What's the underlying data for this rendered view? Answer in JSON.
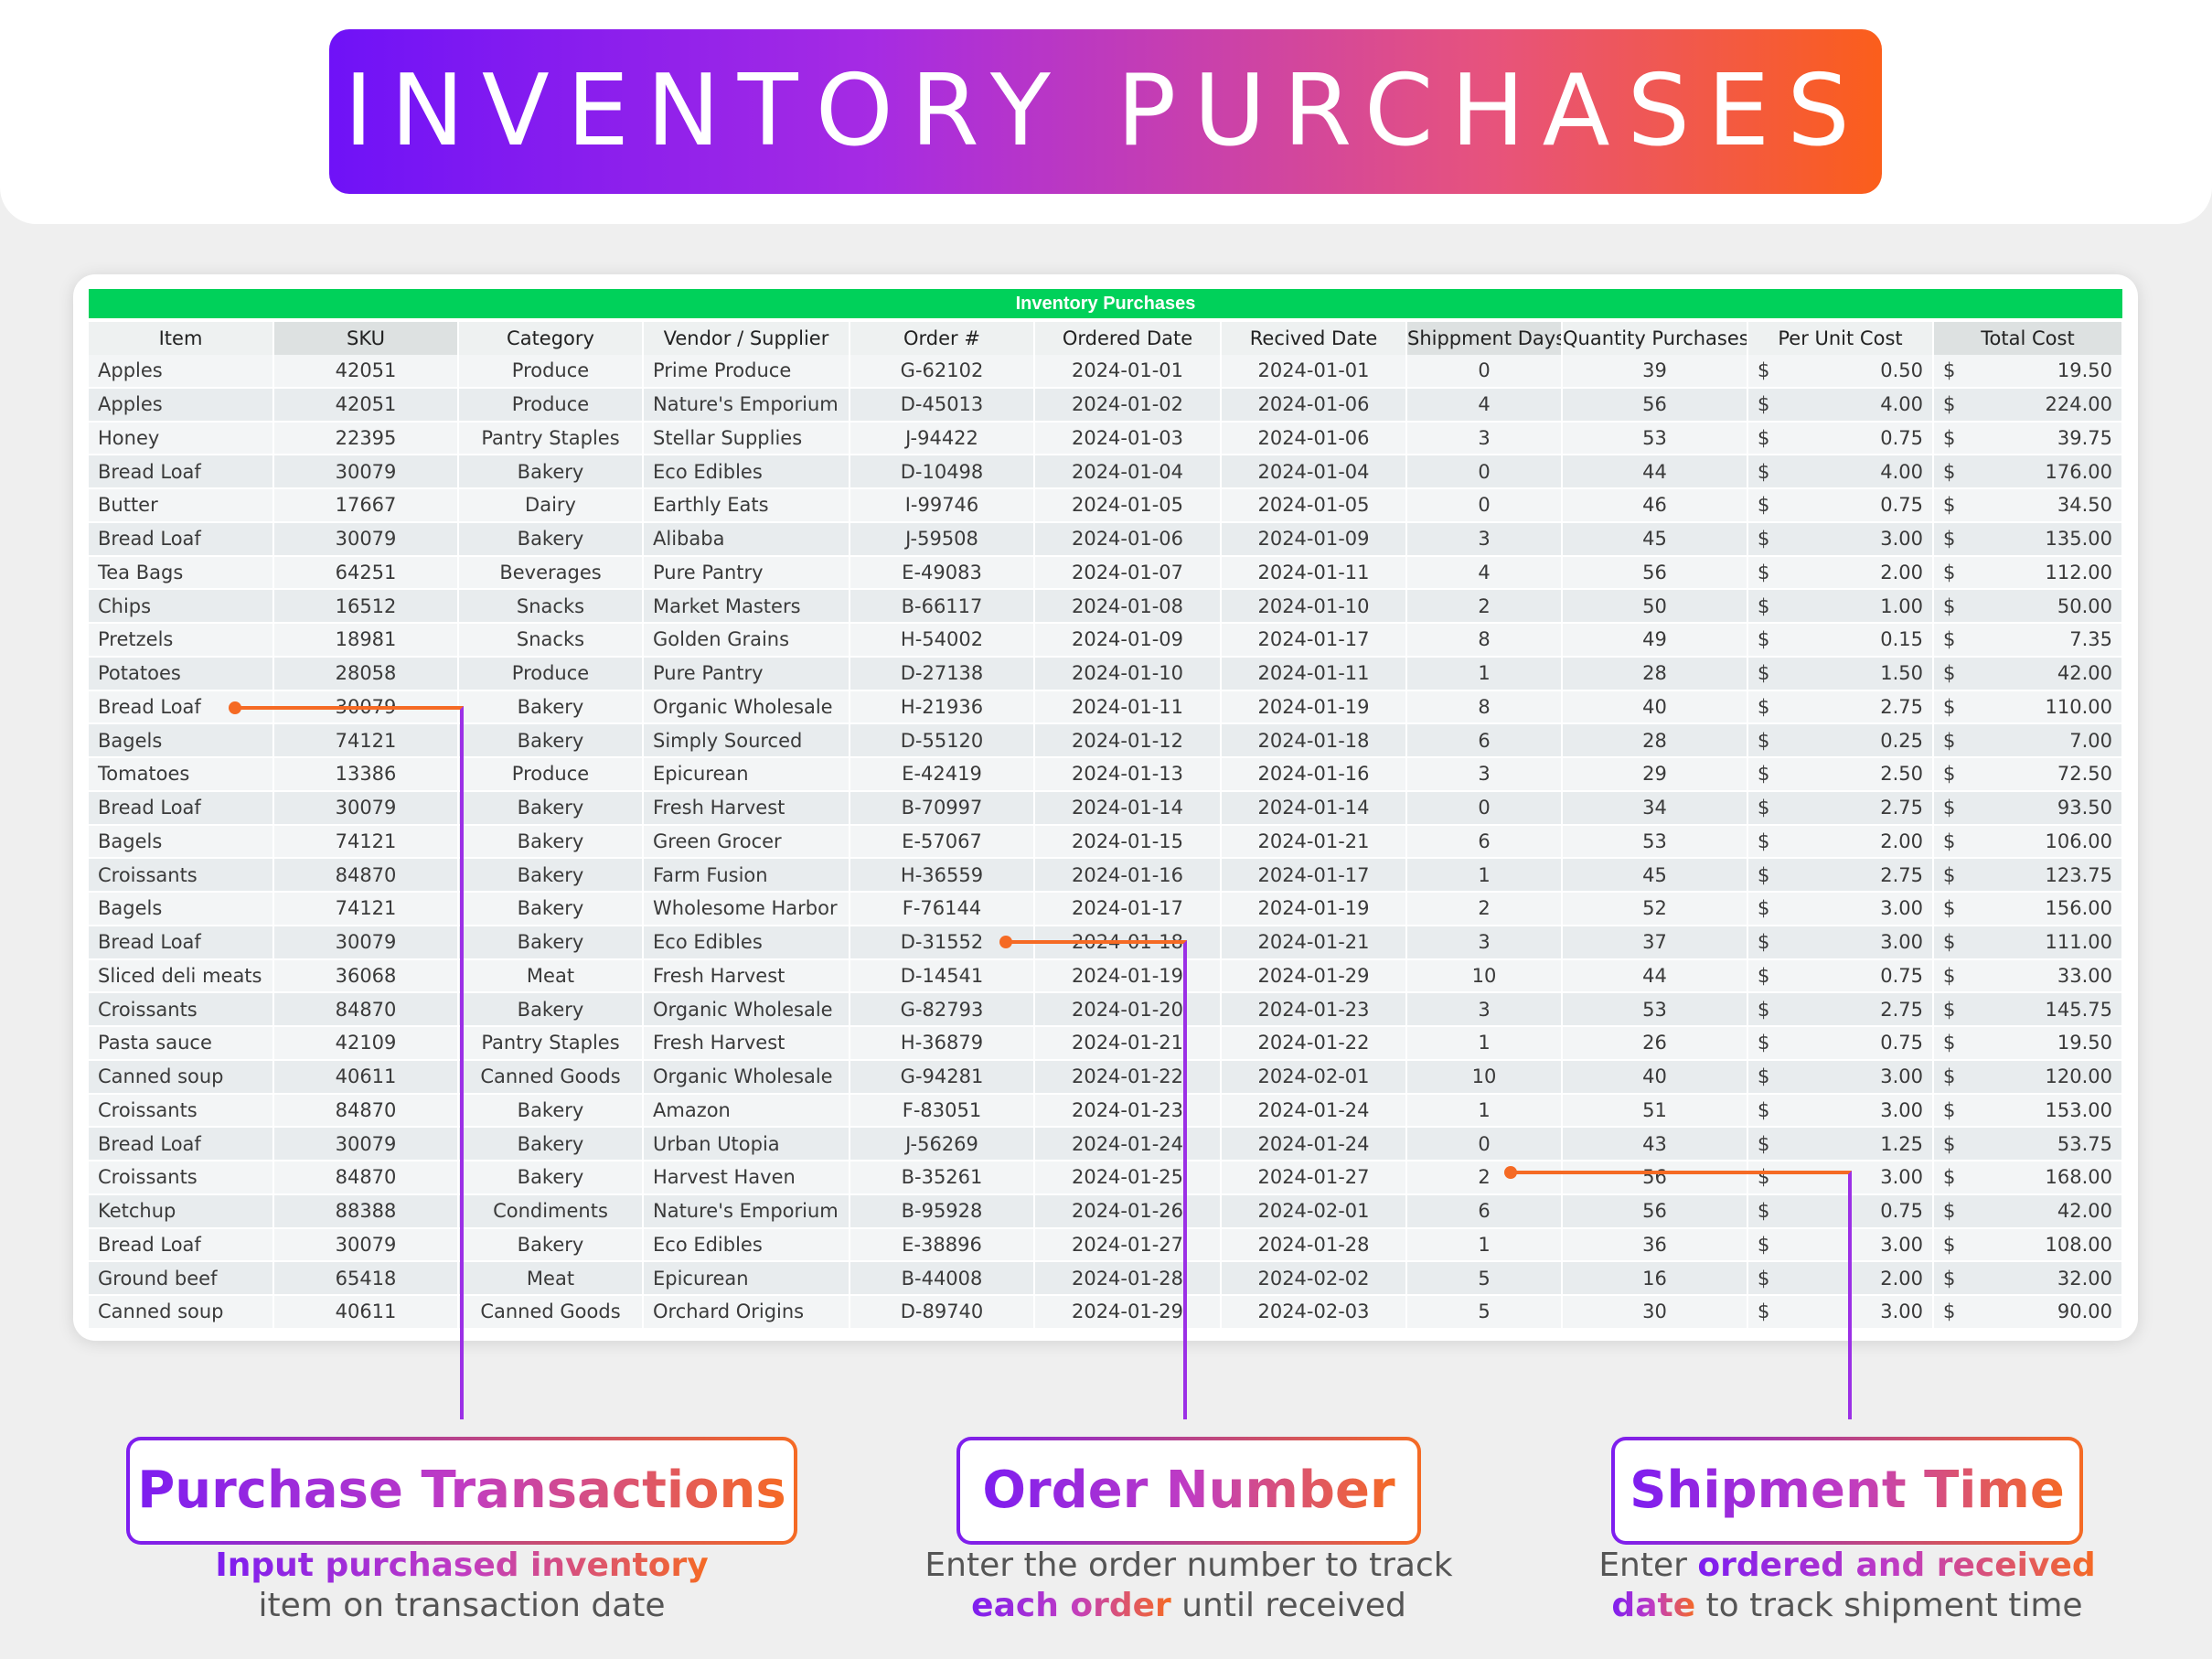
{
  "banner_title": "INVENTORY PURCHASES",
  "sheet_title": "Inventory Purchases",
  "columns": [
    "Item",
    "SKU",
    "Category",
    "Vendor / Supplier",
    "Order #",
    "Ordered Date",
    "Recived Date",
    "Shippment Days",
    "Quantity Purchases",
    "Per Unit Cost",
    "Total Cost"
  ],
  "currency_symbol": "$",
  "rows": [
    [
      "Apples",
      "42051",
      "Produce",
      "Prime Produce",
      "G-62102",
      "2024-01-01",
      "2024-01-01",
      "0",
      "39",
      "0.50",
      "19.50"
    ],
    [
      "Apples",
      "42051",
      "Produce",
      "Nature's Emporium",
      "D-45013",
      "2024-01-02",
      "2024-01-06",
      "4",
      "56",
      "4.00",
      "224.00"
    ],
    [
      "Honey",
      "22395",
      "Pantry Staples",
      "Stellar Supplies",
      "J-94422",
      "2024-01-03",
      "2024-01-06",
      "3",
      "53",
      "0.75",
      "39.75"
    ],
    [
      "Bread Loaf",
      "30079",
      "Bakery",
      "Eco Edibles",
      "D-10498",
      "2024-01-04",
      "2024-01-04",
      "0",
      "44",
      "4.00",
      "176.00"
    ],
    [
      "Butter",
      "17667",
      "Dairy",
      "Earthly Eats",
      "I-99746",
      "2024-01-05",
      "2024-01-05",
      "0",
      "46",
      "0.75",
      "34.50"
    ],
    [
      "Bread Loaf",
      "30079",
      "Bakery",
      "Alibaba",
      "J-59508",
      "2024-01-06",
      "2024-01-09",
      "3",
      "45",
      "3.00",
      "135.00"
    ],
    [
      "Tea Bags",
      "64251",
      "Beverages",
      "Pure Pantry",
      "E-49083",
      "2024-01-07",
      "2024-01-11",
      "4",
      "56",
      "2.00",
      "112.00"
    ],
    [
      "Chips",
      "16512",
      "Snacks",
      "Market Masters",
      "B-66117",
      "2024-01-08",
      "2024-01-10",
      "2",
      "50",
      "1.00",
      "50.00"
    ],
    [
      "Pretzels",
      "18981",
      "Snacks",
      "Golden Grains",
      "H-54002",
      "2024-01-09",
      "2024-01-17",
      "8",
      "49",
      "0.15",
      "7.35"
    ],
    [
      "Potatoes",
      "28058",
      "Produce",
      "Pure Pantry",
      "D-27138",
      "2024-01-10",
      "2024-01-11",
      "1",
      "28",
      "1.50",
      "42.00"
    ],
    [
      "Bread Loaf",
      "30079",
      "Bakery",
      "Organic Wholesale",
      "H-21936",
      "2024-01-11",
      "2024-01-19",
      "8",
      "40",
      "2.75",
      "110.00"
    ],
    [
      "Bagels",
      "74121",
      "Bakery",
      "Simply Sourced",
      "D-55120",
      "2024-01-12",
      "2024-01-18",
      "6",
      "28",
      "0.25",
      "7.00"
    ],
    [
      "Tomatoes",
      "13386",
      "Produce",
      "Epicurean",
      "E-42419",
      "2024-01-13",
      "2024-01-16",
      "3",
      "29",
      "2.50",
      "72.50"
    ],
    [
      "Bread Loaf",
      "30079",
      "Bakery",
      "Fresh Harvest",
      "B-70997",
      "2024-01-14",
      "2024-01-14",
      "0",
      "34",
      "2.75",
      "93.50"
    ],
    [
      "Bagels",
      "74121",
      "Bakery",
      "Green Grocer",
      "E-57067",
      "2024-01-15",
      "2024-01-21",
      "6",
      "53",
      "2.00",
      "106.00"
    ],
    [
      "Croissants",
      "84870",
      "Bakery",
      "Farm Fusion",
      "H-36559",
      "2024-01-16",
      "2024-01-17",
      "1",
      "45",
      "2.75",
      "123.75"
    ],
    [
      "Bagels",
      "74121",
      "Bakery",
      "Wholesome Harbor",
      "F-76144",
      "2024-01-17",
      "2024-01-19",
      "2",
      "52",
      "3.00",
      "156.00"
    ],
    [
      "Bread Loaf",
      "30079",
      "Bakery",
      "Eco Edibles",
      "D-31552",
      "2024-01-18",
      "2024-01-21",
      "3",
      "37",
      "3.00",
      "111.00"
    ],
    [
      "Sliced deli meats",
      "36068",
      "Meat",
      "Fresh Harvest",
      "D-14541",
      "2024-01-19",
      "2024-01-29",
      "10",
      "44",
      "0.75",
      "33.00"
    ],
    [
      "Croissants",
      "84870",
      "Bakery",
      "Organic Wholesale",
      "G-82793",
      "2024-01-20",
      "2024-01-23",
      "3",
      "53",
      "2.75",
      "145.75"
    ],
    [
      "Pasta sauce",
      "42109",
      "Pantry Staples",
      "Fresh Harvest",
      "H-36879",
      "2024-01-21",
      "2024-01-22",
      "1",
      "26",
      "0.75",
      "19.50"
    ],
    [
      "Canned soup",
      "40611",
      "Canned Goods",
      "Organic Wholesale",
      "G-94281",
      "2024-01-22",
      "2024-02-01",
      "10",
      "40",
      "3.00",
      "120.00"
    ],
    [
      "Croissants",
      "84870",
      "Bakery",
      "Amazon",
      "F-83051",
      "2024-01-23",
      "2024-01-24",
      "1",
      "51",
      "3.00",
      "153.00"
    ],
    [
      "Bread Loaf",
      "30079",
      "Bakery",
      "Urban Utopia",
      "J-56269",
      "2024-01-24",
      "2024-01-24",
      "0",
      "43",
      "1.25",
      "53.75"
    ],
    [
      "Croissants",
      "84870",
      "Bakery",
      "Harvest Haven",
      "B-35261",
      "2024-01-25",
      "2024-01-27",
      "2",
      "56",
      "3.00",
      "168.00"
    ],
    [
      "Ketchup",
      "88388",
      "Condiments",
      "Nature's Emporium",
      "B-95928",
      "2024-01-26",
      "2024-02-01",
      "6",
      "56",
      "0.75",
      "42.00"
    ],
    [
      "Bread Loaf",
      "30079",
      "Bakery",
      "Eco Edibles",
      "E-38896",
      "2024-01-27",
      "2024-01-28",
      "1",
      "36",
      "3.00",
      "108.00"
    ],
    [
      "Ground beef",
      "65418",
      "Meat",
      "Epicurean",
      "B-44008",
      "2024-01-28",
      "2024-02-02",
      "5",
      "16",
      "2.00",
      "32.00"
    ],
    [
      "Canned soup",
      "40611",
      "Canned Goods",
      "Orchard Origins",
      "D-89740",
      "2024-01-29",
      "2024-02-03",
      "5",
      "30",
      "3.00",
      "90.00"
    ]
  ],
  "callouts": [
    {
      "title": "Purchase Transactions",
      "line1_emph": "Input purchased inventory",
      "line2": "item on transaction date"
    },
    {
      "title": "Order Number",
      "line1": "Enter the order number to track",
      "line2_emph": "each order",
      "line2_rest": " until received"
    },
    {
      "title": "Shipment Time",
      "line1": "Enter ",
      "line1_emph": "ordered and received",
      "line2_emph": "date",
      "line2_rest": " to track shipment time"
    }
  ],
  "colors": {
    "accent_green": "#00d15a",
    "gradient_start": "#6f12f7",
    "gradient_end": "#fb5e1b",
    "connector_purple": "#9b30e6",
    "dot_orange": "#f56a24"
  }
}
